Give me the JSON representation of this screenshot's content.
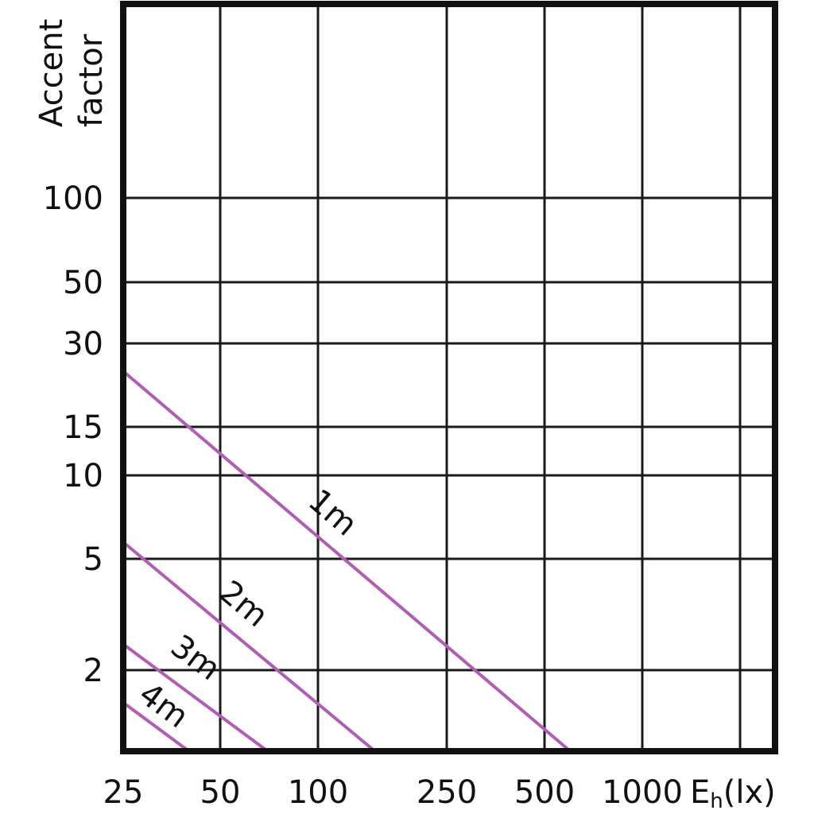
{
  "chart_data": {
    "type": "line",
    "title": "",
    "ylabel_lines": [
      "Accent",
      "factor"
    ],
    "xlabel": "E",
    "xlabel_sub": "h",
    "xlabel_unit": "(lx)",
    "x_scale": "log",
    "y_scale": "piecewise",
    "x_ticks": [
      "25",
      "50",
      "100",
      "250",
      "500",
      "1000"
    ],
    "y_ticks": [
      "2",
      "5",
      "10",
      "15",
      "30",
      "50",
      "100"
    ],
    "grid": true,
    "colors": {
      "line": "#b25db4",
      "grid": "#1a1a1a",
      "frame": "#111111"
    },
    "series": [
      {
        "name": "1m",
        "points": [
          [
            25,
            25
          ],
          [
            600,
            1
          ]
        ]
      },
      {
        "name": "2m",
        "points": [
          [
            25,
            6
          ],
          [
            150,
            1
          ]
        ]
      },
      {
        "name": "3m",
        "points": [
          [
            25,
            2.7
          ],
          [
            70,
            1
          ]
        ]
      },
      {
        "name": "4m",
        "points": [
          [
            25,
            1.6
          ],
          [
            40,
            1
          ]
        ]
      }
    ]
  }
}
